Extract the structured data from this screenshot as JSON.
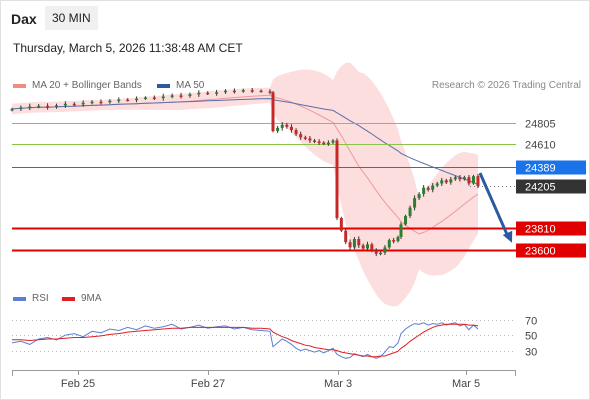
{
  "header": {
    "symbol": "Dax",
    "interval": "30 MIN",
    "datetime": "Thursday, March 5, 2026 11:38:48 AM CET",
    "copyright": "Research © 2026 Trading Central"
  },
  "legend": {
    "bollinger": {
      "label": "MA 20 + Bollinger Bands",
      "color": "#f28b82"
    },
    "ma50": {
      "label": "MA 50",
      "color": "#2c5aa0"
    },
    "rsi": {
      "label": "RSI",
      "color": "#5b7fd6"
    },
    "rsi_ma": {
      "label": "9MA",
      "color": "#e02020"
    }
  },
  "colors": {
    "up": "#2e7d32",
    "down": "#c62828",
    "support": "#e00000",
    "resistance": "#8bc34a",
    "current": "#1a73e8",
    "last": "#333333",
    "grid": "#bbbbbb"
  },
  "chart_data": [
    {
      "type": "candlestick",
      "x_ticks": [
        "Feb 25",
        "Feb 27",
        "Mar 3",
        "Mar 5"
      ],
      "ylim": [
        23500,
        24950
      ],
      "levels": [
        {
          "value": 24805,
          "label": "24805",
          "kind": "resistance"
        },
        {
          "value": 24610,
          "label": "24610",
          "kind": "resistance"
        },
        {
          "value": 24389,
          "label": "24389",
          "kind": "current"
        },
        {
          "value": 24205,
          "label": "24205",
          "kind": "last"
        },
        {
          "value": 23810,
          "label": "23810",
          "kind": "support"
        },
        {
          "value": 23600,
          "label": "23600",
          "kind": "support"
        }
      ],
      "close": [
        24940,
        24955,
        24965,
        24970,
        24960,
        24975,
        24990,
        24985,
        25000,
        25010,
        25005,
        25020,
        25030,
        25025,
        25040,
        25050,
        25045,
        25060,
        25070,
        25065,
        25080,
        25095,
        25090,
        25100,
        25115,
        25110,
        25120,
        25115,
        25110,
        25100,
        24730,
        24760,
        24790,
        24770,
        24740,
        24700,
        24670,
        24660,
        24640,
        24630,
        24620,
        24610,
        24620,
        24640,
        23900,
        23780,
        23670,
        23620,
        23700,
        23640,
        23610,
        23650,
        23590,
        23560,
        23570,
        23620,
        23690,
        23680,
        23720,
        23840,
        23920,
        24000,
        24090,
        24130,
        24190,
        24170,
        24210,
        24230,
        24260,
        24240,
        24270,
        24290,
        24270,
        24290,
        24230,
        24300,
        24205
      ],
      "forecast": {
        "from": 24330,
        "to": 23665
      }
    },
    {
      "type": "line",
      "ylim": [
        10,
        80
      ],
      "y_ticks": [
        "70",
        "50",
        "30"
      ],
      "series": [
        {
          "name": "RSI",
          "values": [
            40,
            42,
            38,
            45,
            47,
            44,
            50,
            52,
            48,
            55,
            53,
            58,
            56,
            60,
            57,
            62,
            59,
            61,
            64,
            58,
            60,
            63,
            59,
            61,
            62,
            58,
            60,
            57,
            56,
            55,
            35,
            40,
            45,
            42,
            38,
            33,
            30,
            32,
            30,
            28,
            30,
            27,
            30,
            33,
            25,
            22,
            20,
            21,
            26,
            24,
            22,
            25,
            22,
            20,
            22,
            28,
            35,
            34,
            40,
            52,
            58,
            62,
            65,
            64,
            66,
            63,
            65,
            64,
            66,
            63,
            65,
            66,
            62,
            64,
            57,
            63,
            58
          ]
        },
        {
          "name": "9MA",
          "values": [
            44,
            44,
            43,
            44,
            45,
            45,
            46,
            47,
            47,
            48,
            49,
            51,
            52,
            54,
            55,
            56,
            57,
            58,
            59,
            59,
            60,
            60,
            60,
            60,
            60,
            60,
            60,
            59,
            59,
            58,
            54,
            51,
            48,
            46,
            43,
            41,
            39,
            37,
            36,
            34,
            33,
            32,
            31,
            31,
            30,
            28,
            27,
            26,
            25,
            24,
            23,
            23,
            22,
            22,
            23,
            23,
            25,
            27,
            29,
            33,
            37,
            42,
            46,
            50,
            54,
            57,
            60,
            62,
            63,
            64,
            64,
            64,
            64,
            64,
            63,
            63,
            62
          ]
        }
      ]
    }
  ]
}
